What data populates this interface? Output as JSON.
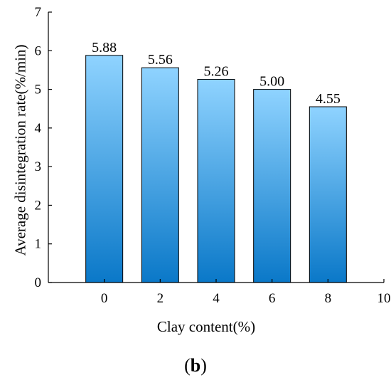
{
  "chart_data": {
    "type": "bar",
    "categories": [
      "0",
      "2",
      "4",
      "6",
      "8"
    ],
    "x": [
      0,
      2,
      4,
      6,
      8
    ],
    "values": [
      5.88,
      5.56,
      5.26,
      5.0,
      4.55
    ],
    "value_labels": [
      "5.88",
      "5.56",
      "5.26",
      "5.00",
      "4.55"
    ],
    "xlabel": "Clay content(%)",
    "ylabel": "Average disintegration rate(%/min)",
    "xlim": [
      -2,
      10
    ],
    "ylim": [
      0,
      7
    ],
    "xticks": [
      0,
      2,
      4,
      6,
      8,
      10
    ],
    "xtick_labels": [
      "0",
      "2",
      "4",
      "6",
      "8",
      "10"
    ],
    "yticks": [
      0,
      1,
      2,
      3,
      4,
      5,
      6,
      7
    ],
    "ytick_labels": [
      "0",
      "1",
      "2",
      "3",
      "4",
      "5",
      "6",
      "7"
    ],
    "grid": false,
    "legend": "none",
    "bar_color_top": "#8fd3ff",
    "bar_color_bottom": "#0a78c8",
    "bar_edge_color": "#000000"
  },
  "panel_label": {
    "open": "(",
    "letter": "b",
    "close": ")"
  }
}
